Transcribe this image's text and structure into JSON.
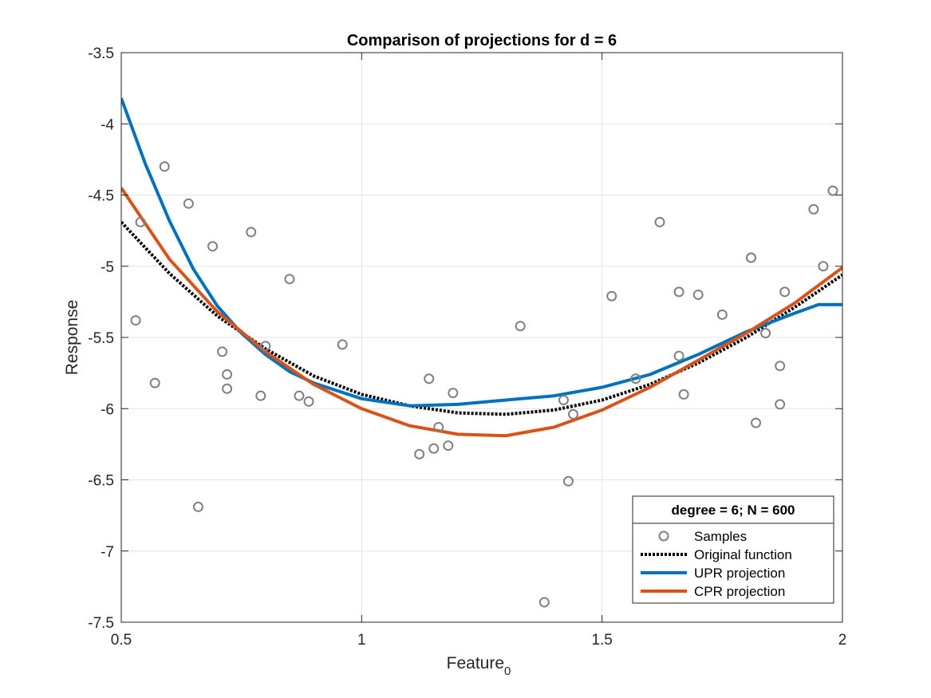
{
  "chart_data": {
    "type": "scatter",
    "title": "Comparison of projections for d = 6",
    "xlabel": "Feature",
    "xlabel_subscript": "0",
    "ylabel": "Response",
    "xlim": [
      0.5,
      2
    ],
    "ylim": [
      -7.5,
      -3.5
    ],
    "xticks": [
      0.5,
      1,
      1.5,
      2
    ],
    "xtick_labels": [
      "0.5",
      "1",
      "1.5",
      "2"
    ],
    "yticks": [
      -7.5,
      -7,
      -6.5,
      -6,
      -5.5,
      -5,
      -4.5,
      -4,
      -3.5
    ],
    "ytick_labels": [
      "-7.5",
      "-7",
      "-6.5",
      "-6",
      "-5.5",
      "-5",
      "-4.5",
      "-4",
      "-3.5"
    ],
    "grid": true,
    "legend": {
      "title": "degree = 6; N = 600",
      "location": "bottom-right",
      "entries": [
        "Samples",
        "Original function",
        "UPR projection",
        "CPR projection"
      ]
    },
    "series": [
      {
        "name": "Samples",
        "kind": "scatter",
        "color": "#808080",
        "x": [
          0.53,
          0.54,
          0.57,
          0.59,
          0.64,
          0.66,
          0.69,
          0.71,
          0.72,
          0.72,
          0.77,
          0.79,
          0.8,
          0.85,
          0.87,
          0.89,
          0.96,
          1.12,
          1.14,
          1.15,
          1.16,
          1.18,
          1.19,
          1.33,
          1.38,
          1.42,
          1.43,
          1.44,
          1.52,
          1.57,
          1.62,
          1.66,
          1.66,
          1.67,
          1.7,
          1.75,
          1.81,
          1.81,
          1.82,
          1.84,
          1.87,
          1.87,
          1.88,
          1.94,
          1.96,
          1.98
        ],
        "y": [
          -5.38,
          -4.69,
          -5.82,
          -4.3,
          -4.56,
          -6.69,
          -4.86,
          -5.6,
          -5.76,
          -5.86,
          -4.76,
          -5.91,
          -5.56,
          -5.09,
          -5.91,
          -5.95,
          -5.55,
          -6.32,
          -5.79,
          -6.28,
          -6.13,
          -6.26,
          -5.89,
          -5.42,
          -7.36,
          -5.94,
          -6.51,
          -6.04,
          -5.21,
          -5.79,
          -4.69,
          -5.63,
          -5.18,
          -5.9,
          -5.2,
          -5.34,
          -4.94,
          -4.94,
          -6.1,
          -5.47,
          -5.97,
          -5.7,
          -5.18,
          -4.6,
          -5.0,
          -4.47
        ]
      },
      {
        "name": "Original function",
        "kind": "line",
        "color": "#000000",
        "style": "dotted",
        "x": [
          0.5,
          0.6,
          0.7,
          0.8,
          0.9,
          1.0,
          1.1,
          1.2,
          1.3,
          1.4,
          1.5,
          1.6,
          1.7,
          1.8,
          1.9,
          2.0
        ],
        "y": [
          -4.69,
          -5.05,
          -5.35,
          -5.58,
          -5.77,
          -5.9,
          -5.98,
          -6.03,
          -6.04,
          -6.01,
          -5.94,
          -5.83,
          -5.68,
          -5.5,
          -5.29,
          -5.06
        ]
      },
      {
        "name": "UPR projection",
        "kind": "line",
        "color": "#0072BD",
        "style": "solid",
        "x": [
          0.5,
          0.55,
          0.6,
          0.65,
          0.7,
          0.75,
          0.8,
          0.85,
          0.9,
          1.0,
          1.1,
          1.2,
          1.3,
          1.4,
          1.5,
          1.6,
          1.7,
          1.8,
          1.9,
          1.95,
          2.0
        ],
        "y": [
          -3.82,
          -4.28,
          -4.68,
          -5.02,
          -5.28,
          -5.47,
          -5.62,
          -5.74,
          -5.82,
          -5.93,
          -5.98,
          -5.97,
          -5.94,
          -5.91,
          -5.85,
          -5.76,
          -5.62,
          -5.46,
          -5.33,
          -5.27,
          -5.27
        ]
      },
      {
        "name": "CPR projection",
        "kind": "line",
        "color": "#D95319",
        "style": "solid",
        "x": [
          0.5,
          0.6,
          0.7,
          0.8,
          0.9,
          1.0,
          1.1,
          1.2,
          1.3,
          1.4,
          1.5,
          1.6,
          1.7,
          1.8,
          1.9,
          2.0
        ],
        "y": [
          -4.45,
          -4.95,
          -5.32,
          -5.6,
          -5.83,
          -6.0,
          -6.12,
          -6.18,
          -6.19,
          -6.13,
          -6.01,
          -5.85,
          -5.66,
          -5.47,
          -5.26,
          -5.01
        ]
      }
    ]
  }
}
